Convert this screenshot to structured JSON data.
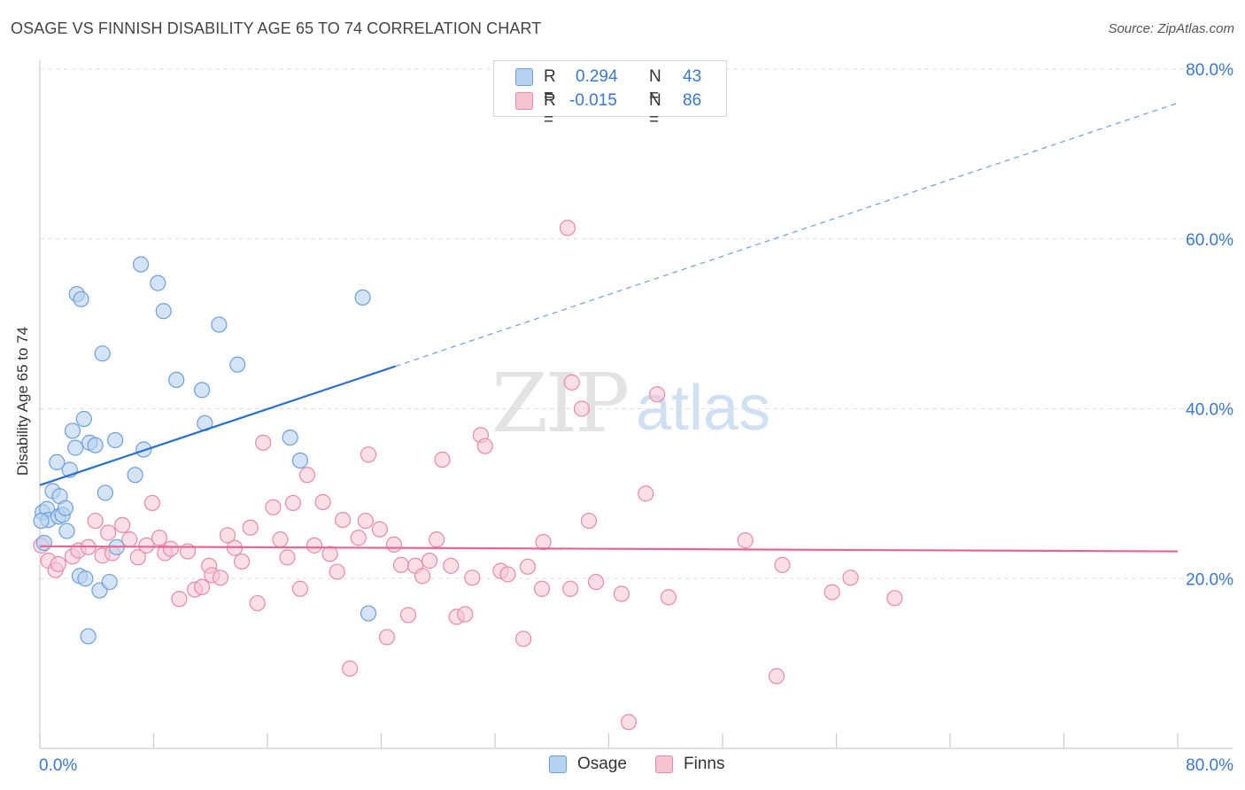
{
  "title": "OSAGE VS FINNISH DISABILITY AGE 65 TO 74 CORRELATION CHART",
  "source": "Source: ZipAtlas.com",
  "watermark": {
    "zip": "ZIP",
    "atlas": "atlas"
  },
  "colors": {
    "osage_fill": "#b7d2f0",
    "osage_stroke": "#6d9fd9",
    "osage_line": "#2a6fcf",
    "finns_fill": "#f7c4d3",
    "finns_stroke": "#e889a8",
    "finns_line": "#e8658f",
    "tick_label": "#3a78c9",
    "grid": "#dddddd"
  },
  "legend": {
    "rows": [
      {
        "r_label": "R =",
        "r_value": "0.294",
        "n_label": "N =",
        "n_value": "43"
      },
      {
        "r_label": "R =",
        "r_value": "-0.015",
        "n_label": "N =",
        "n_value": "86"
      }
    ]
  },
  "bottom_legend": {
    "series1": "Osage",
    "series2": "Finns"
  },
  "chart_data": {
    "type": "scatter",
    "title": "OSAGE VS FINNISH DISABILITY AGE 65 TO 74 CORRELATION CHART",
    "xlabel": "",
    "ylabel": "Disability Age 65 to 74",
    "xlim": [
      0,
      80
    ],
    "ylim": [
      0,
      80
    ],
    "x_tick_labels": [
      "0.0%",
      "80.0%"
    ],
    "y_tick_labels": [
      "20.0%",
      "40.0%",
      "60.0%",
      "80.0%"
    ],
    "y_gridlines": [
      20,
      40,
      60,
      80
    ],
    "series": [
      {
        "name": "Osage",
        "r": 0.294,
        "n": 43,
        "trend": {
          "x0": 0,
          "y0": 31.0,
          "x1": 25,
          "y1": 45.0,
          "dashed_to_x": 80,
          "dashed_to_y": 76.0
        },
        "points": [
          [
            0.2,
            27.8
          ],
          [
            0.3,
            24.2
          ],
          [
            0.5,
            28.2
          ],
          [
            0.6,
            26.9
          ],
          [
            0.9,
            30.3
          ],
          [
            1.2,
            33.7
          ],
          [
            1.3,
            27.3
          ],
          [
            1.4,
            29.7
          ],
          [
            1.6,
            27.5
          ],
          [
            1.8,
            28.3
          ],
          [
            1.9,
            25.6
          ],
          [
            2.1,
            32.8
          ],
          [
            2.3,
            37.4
          ],
          [
            2.5,
            35.4
          ],
          [
            2.6,
            53.5
          ],
          [
            2.8,
            20.3
          ],
          [
            2.9,
            52.9
          ],
          [
            3.1,
            38.8
          ],
          [
            3.2,
            20.0
          ],
          [
            3.4,
            13.2
          ],
          [
            3.5,
            36.0
          ],
          [
            3.9,
            35.7
          ],
          [
            4.2,
            18.6
          ],
          [
            4.4,
            46.5
          ],
          [
            4.6,
            30.1
          ],
          [
            4.9,
            19.6
          ],
          [
            5.3,
            36.3
          ],
          [
            5.4,
            23.7
          ],
          [
            6.7,
            32.2
          ],
          [
            7.1,
            57.0
          ],
          [
            7.3,
            35.2
          ],
          [
            8.3,
            54.8
          ],
          [
            8.7,
            51.5
          ],
          [
            9.6,
            43.4
          ],
          [
            11.4,
            42.2
          ],
          [
            11.6,
            38.3
          ],
          [
            12.6,
            49.9
          ],
          [
            13.9,
            45.2
          ],
          [
            17.6,
            36.6
          ],
          [
            18.3,
            33.9
          ],
          [
            22.7,
            53.1
          ],
          [
            23.1,
            15.9
          ],
          [
            0.1,
            26.8
          ]
        ]
      },
      {
        "name": "Finns",
        "r": -0.015,
        "n": 86,
        "trend": {
          "x0": 0,
          "y0": 23.8,
          "x1": 80,
          "y1": 23.2
        },
        "points": [
          [
            0.1,
            23.9
          ],
          [
            0.6,
            22.1
          ],
          [
            1.1,
            21.0
          ],
          [
            1.3,
            21.7
          ],
          [
            2.3,
            22.6
          ],
          [
            2.7,
            23.3
          ],
          [
            3.4,
            23.7
          ],
          [
            3.9,
            26.8
          ],
          [
            4.4,
            22.7
          ],
          [
            4.8,
            25.4
          ],
          [
            5.1,
            23.0
          ],
          [
            5.8,
            26.3
          ],
          [
            6.3,
            24.6
          ],
          [
            6.9,
            22.5
          ],
          [
            7.5,
            23.9
          ],
          [
            7.9,
            28.9
          ],
          [
            8.4,
            24.8
          ],
          [
            8.8,
            23.0
          ],
          [
            9.2,
            23.5
          ],
          [
            9.8,
            17.6
          ],
          [
            10.4,
            23.2
          ],
          [
            10.9,
            18.7
          ],
          [
            11.4,
            19.0
          ],
          [
            11.9,
            21.5
          ],
          [
            12.1,
            20.4
          ],
          [
            12.7,
            20.1
          ],
          [
            13.2,
            25.1
          ],
          [
            13.7,
            23.6
          ],
          [
            14.2,
            22.0
          ],
          [
            14.8,
            26.0
          ],
          [
            15.3,
            17.1
          ],
          [
            15.7,
            36.0
          ],
          [
            16.4,
            28.4
          ],
          [
            16.9,
            24.6
          ],
          [
            17.4,
            22.5
          ],
          [
            17.8,
            28.9
          ],
          [
            18.3,
            18.8
          ],
          [
            18.8,
            32.2
          ],
          [
            19.3,
            23.9
          ],
          [
            19.9,
            29.0
          ],
          [
            20.4,
            22.9
          ],
          [
            20.9,
            20.8
          ],
          [
            21.3,
            26.9
          ],
          [
            21.8,
            9.4
          ],
          [
            22.4,
            24.8
          ],
          [
            22.9,
            26.8
          ],
          [
            23.1,
            34.6
          ],
          [
            23.9,
            25.8
          ],
          [
            24.4,
            13.1
          ],
          [
            24.9,
            24.0
          ],
          [
            25.4,
            21.6
          ],
          [
            25.9,
            15.7
          ],
          [
            26.4,
            21.5
          ],
          [
            26.9,
            20.3
          ],
          [
            27.4,
            22.1
          ],
          [
            27.9,
            24.6
          ],
          [
            28.3,
            34.0
          ],
          [
            28.9,
            21.5
          ],
          [
            29.3,
            15.5
          ],
          [
            29.9,
            15.8
          ],
          [
            30.4,
            20.1
          ],
          [
            31.0,
            36.9
          ],
          [
            31.3,
            35.6
          ],
          [
            32.4,
            20.9
          ],
          [
            32.9,
            20.5
          ],
          [
            34.0,
            12.9
          ],
          [
            34.3,
            21.4
          ],
          [
            35.3,
            18.8
          ],
          [
            35.4,
            24.3
          ],
          [
            37.1,
            61.3
          ],
          [
            37.4,
            43.1
          ],
          [
            38.1,
            40.0
          ],
          [
            38.6,
            26.8
          ],
          [
            39.1,
            19.6
          ],
          [
            40.9,
            18.2
          ],
          [
            41.4,
            3.1
          ],
          [
            42.6,
            30.0
          ],
          [
            43.4,
            41.7
          ],
          [
            44.2,
            17.8
          ],
          [
            49.6,
            24.5
          ],
          [
            51.8,
            8.5
          ],
          [
            52.2,
            21.6
          ],
          [
            55.7,
            18.4
          ],
          [
            57.0,
            20.1
          ],
          [
            60.1,
            17.7
          ],
          [
            37.3,
            18.8
          ]
        ]
      }
    ]
  }
}
